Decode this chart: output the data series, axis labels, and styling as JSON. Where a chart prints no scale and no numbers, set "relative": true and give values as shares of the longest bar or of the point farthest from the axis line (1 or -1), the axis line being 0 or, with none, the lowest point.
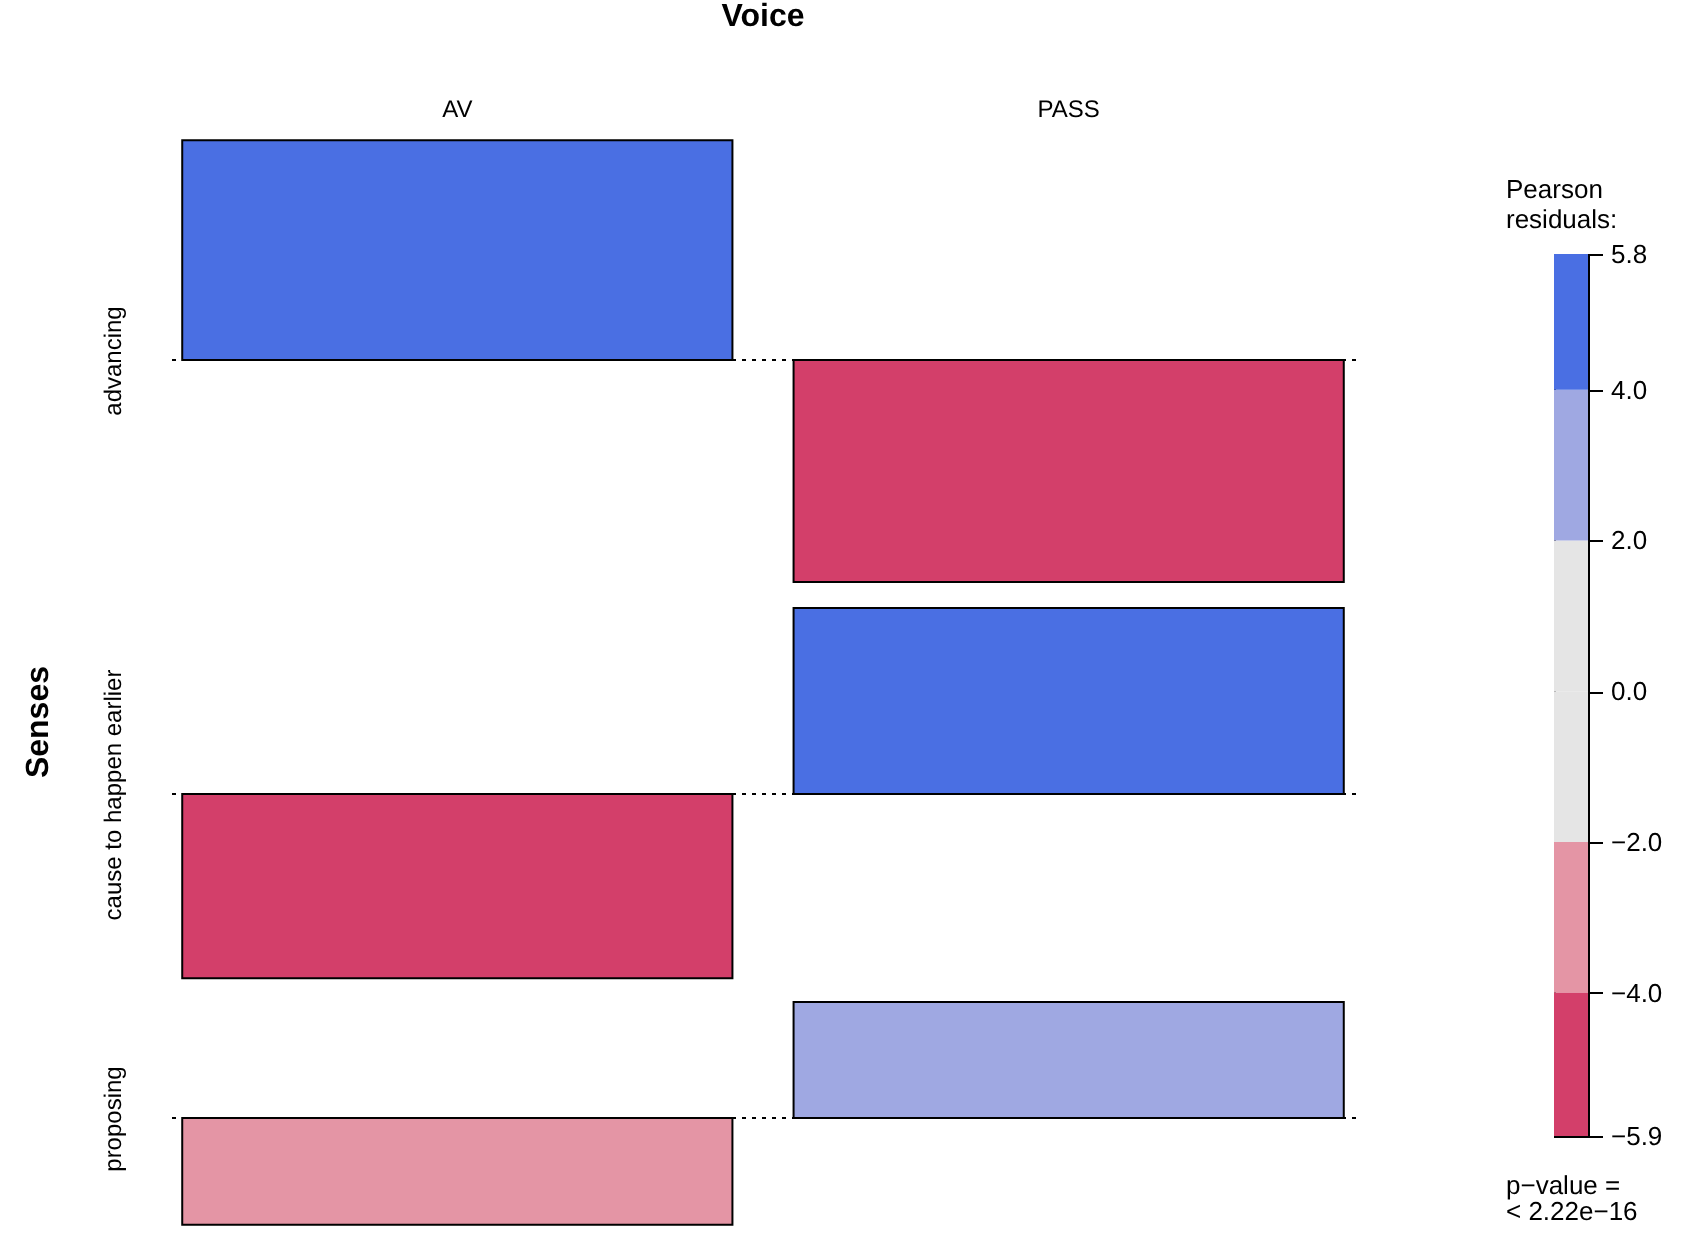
{
  "chart_data": [
    {
      "type": "bar",
      "title": "Voice",
      "ylabel": "advancing",
      "relative": true,
      "categories": [
        "AV",
        "PASS"
      ],
      "values": [
        0.99,
        -1
      ],
      "colors": [
        "#4a6fe3",
        "#d33f6a"
      ],
      "tick_labels": "x",
      "ref_lines": [
        {
          "axis": "y",
          "value": 0,
          "line_style": "dotted"
        }
      ],
      "annotations": [
        "Senses"
      ]
    },
    {
      "type": "bar",
      "ylabel": "cause to happen earlier",
      "relative": true,
      "categories": [
        null,
        null
      ],
      "values": [
        -0.99,
        1
      ],
      "colors": [
        "#d33f6a",
        "#4a6fe3"
      ],
      "ref_lines": [
        {
          "axis": "y",
          "value": 0,
          "line_style": "dotted"
        }
      ]
    },
    {
      "type": "bar",
      "ylabel": "proposing",
      "relative": true,
      "categories": [
        null,
        null
      ],
      "values": [
        -0.92,
        1
      ],
      "colors": [
        "#e495a5",
        "#9fa8e2"
      ],
      "ref_lines": [
        {
          "axis": "y",
          "value": 0,
          "line_style": "dotted"
        }
      ]
    },
    {
      "type": "bar",
      "stacked": true,
      "categories": [
        null
      ],
      "title": "Pearson residuals:",
      "ylim": [
        -5.9,
        5.8
      ],
      "yticks": [
        {
          "value": -5.9,
          "label": "−5.9"
        },
        {
          "value": -4,
          "label": "−4.0"
        },
        {
          "value": -2,
          "label": "−2.0"
        },
        {
          "value": 0,
          "label": "0.0"
        },
        {
          "value": 2,
          "label": "2.0"
        },
        {
          "value": 4,
          "label": "4.0"
        },
        {
          "value": 5.8,
          "label": "5.8"
        }
      ],
      "series": [
        {
          "color": "#e5e5e5",
          "values": [
            2
          ]
        },
        {
          "color": "#9fa8e2",
          "values": [
            2
          ]
        },
        {
          "color": "#4a6fe3",
          "values": [
            1.8
          ]
        },
        {
          "color": "#e5e5e5",
          "values": [
            -2
          ]
        },
        {
          "color": "#e495a5",
          "values": [
            -2
          ]
        },
        {
          "color": "#d33f6a",
          "values": [
            -1.9
          ]
        }
      ],
      "annotations": [
        "p−value =\n< 2.22e−16"
      ]
    }
  ]
}
